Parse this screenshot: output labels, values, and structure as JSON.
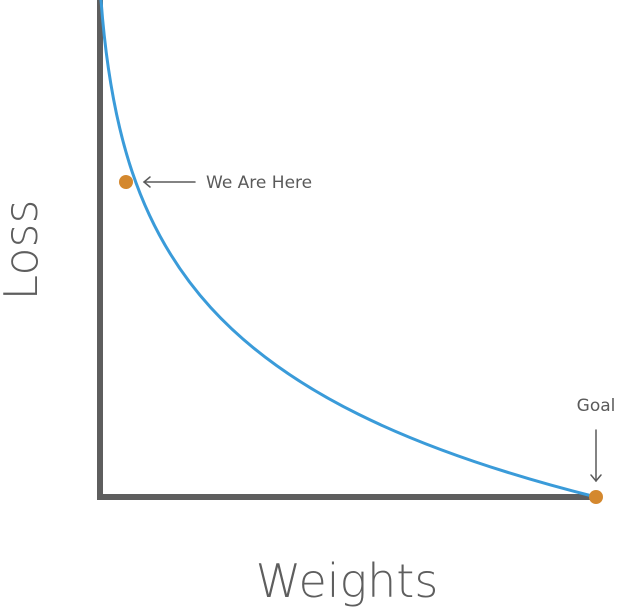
{
  "labels": {
    "y_axis": "Loss",
    "x_axis": "Weights",
    "current_position": "We Are Here",
    "target": "Goal"
  },
  "colors": {
    "axis": "#5e5e5e",
    "curve": "#3a9bd9",
    "marker": "#d4882e",
    "text": "#5a5a5a"
  }
}
